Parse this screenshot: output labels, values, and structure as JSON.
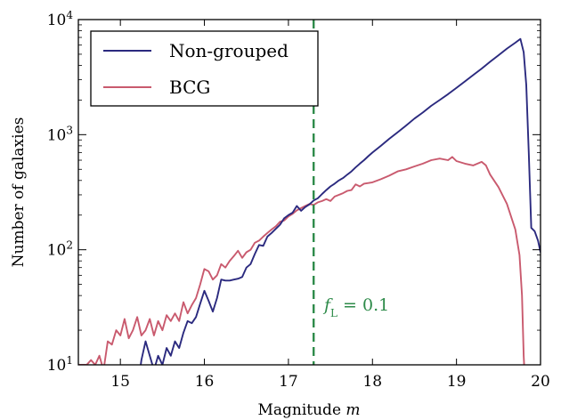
{
  "chart_data": {
    "type": "line",
    "xlabel": "Magnitude m",
    "ylabel": "Number of galaxies",
    "xlim": [
      14.5,
      20.0
    ],
    "ylim": [
      10,
      10000
    ],
    "yscale": "log",
    "grid": false,
    "legend_position": "top-left",
    "x_ticks": [
      "15",
      "16",
      "17",
      "18",
      "19",
      "20"
    ],
    "y_ticks": [
      {
        "value": 10,
        "base": "10",
        "exp": "1"
      },
      {
        "value": 100,
        "base": "10",
        "exp": "2"
      },
      {
        "value": 1000,
        "base": "10",
        "exp": "3"
      },
      {
        "value": 10000,
        "base": "10",
        "exp": "4"
      }
    ],
    "series": [
      {
        "name": "Non-grouped",
        "color": "#2b2a7f",
        "points": [
          [
            15.1,
            10
          ],
          [
            15.15,
            7
          ],
          [
            15.2,
            6
          ],
          [
            15.25,
            11
          ],
          [
            15.3,
            16
          ],
          [
            15.35,
            12
          ],
          [
            15.4,
            9
          ],
          [
            15.45,
            12
          ],
          [
            15.5,
            10
          ],
          [
            15.55,
            14
          ],
          [
            15.6,
            12
          ],
          [
            15.65,
            16
          ],
          [
            15.7,
            14
          ],
          [
            15.75,
            19
          ],
          [
            15.8,
            24
          ],
          [
            15.85,
            23
          ],
          [
            15.9,
            26
          ],
          [
            15.95,
            34
          ],
          [
            16.0,
            44
          ],
          [
            16.05,
            36
          ],
          [
            16.1,
            29
          ],
          [
            16.15,
            38
          ],
          [
            16.2,
            55
          ],
          [
            16.25,
            54
          ],
          [
            16.3,
            54
          ],
          [
            16.35,
            55
          ],
          [
            16.4,
            56
          ],
          [
            16.45,
            58
          ],
          [
            16.5,
            70
          ],
          [
            16.55,
            75
          ],
          [
            16.6,
            92
          ],
          [
            16.65,
            110
          ],
          [
            16.7,
            108
          ],
          [
            16.75,
            130
          ],
          [
            16.8,
            140
          ],
          [
            16.85,
            152
          ],
          [
            16.9,
            165
          ],
          [
            16.95,
            188
          ],
          [
            17.0,
            200
          ],
          [
            17.05,
            210
          ],
          [
            17.1,
            240
          ],
          [
            17.15,
            218
          ],
          [
            17.2,
            235
          ],
          [
            17.25,
            248
          ],
          [
            17.3,
            268
          ],
          [
            17.35,
            280
          ],
          [
            17.4,
            305
          ],
          [
            17.45,
            330
          ],
          [
            17.5,
            355
          ],
          [
            17.55,
            375
          ],
          [
            17.6,
            400
          ],
          [
            17.65,
            420
          ],
          [
            17.7,
            450
          ],
          [
            17.75,
            480
          ],
          [
            17.8,
            520
          ],
          [
            17.85,
            560
          ],
          [
            17.9,
            600
          ],
          [
            17.95,
            650
          ],
          [
            18.0,
            700
          ],
          [
            18.1,
            800
          ],
          [
            18.2,
            920
          ],
          [
            18.3,
            1050
          ],
          [
            18.4,
            1200
          ],
          [
            18.5,
            1380
          ],
          [
            18.6,
            1560
          ],
          [
            18.7,
            1780
          ],
          [
            18.8,
            2000
          ],
          [
            18.9,
            2250
          ],
          [
            19.0,
            2550
          ],
          [
            19.1,
            2900
          ],
          [
            19.2,
            3300
          ],
          [
            19.3,
            3750
          ],
          [
            19.4,
            4300
          ],
          [
            19.5,
            4900
          ],
          [
            19.6,
            5600
          ],
          [
            19.7,
            6300
          ],
          [
            19.76,
            6800
          ],
          [
            19.8,
            5200
          ],
          [
            19.83,
            2700
          ],
          [
            19.86,
            700
          ],
          [
            19.89,
            155
          ],
          [
            19.93,
            145
          ],
          [
            19.97,
            120
          ],
          [
            20.0,
            95
          ]
        ]
      },
      {
        "name": "BCG",
        "color": "#c95a6e",
        "points": [
          [
            14.5,
            10
          ],
          [
            14.55,
            10
          ],
          [
            14.6,
            10
          ],
          [
            14.65,
            11
          ],
          [
            14.7,
            10
          ],
          [
            14.75,
            12
          ],
          [
            14.8,
            9
          ],
          [
            14.85,
            16
          ],
          [
            14.9,
            15
          ],
          [
            14.95,
            20
          ],
          [
            15.0,
            18
          ],
          [
            15.05,
            25
          ],
          [
            15.1,
            17
          ],
          [
            15.15,
            20
          ],
          [
            15.2,
            26
          ],
          [
            15.25,
            18
          ],
          [
            15.3,
            20
          ],
          [
            15.35,
            25
          ],
          [
            15.4,
            18
          ],
          [
            15.45,
            24
          ],
          [
            15.5,
            20
          ],
          [
            15.55,
            27
          ],
          [
            15.6,
            24
          ],
          [
            15.65,
            28
          ],
          [
            15.7,
            24
          ],
          [
            15.75,
            35
          ],
          [
            15.8,
            28
          ],
          [
            15.85,
            33
          ],
          [
            15.9,
            38
          ],
          [
            15.95,
            50
          ],
          [
            16.0,
            68
          ],
          [
            16.05,
            65
          ],
          [
            16.1,
            55
          ],
          [
            16.15,
            60
          ],
          [
            16.2,
            75
          ],
          [
            16.25,
            70
          ],
          [
            16.3,
            80
          ],
          [
            16.35,
            88
          ],
          [
            16.4,
            98
          ],
          [
            16.45,
            85
          ],
          [
            16.5,
            95
          ],
          [
            16.55,
            100
          ],
          [
            16.6,
            115
          ],
          [
            16.65,
            120
          ],
          [
            16.7,
            130
          ],
          [
            16.75,
            140
          ],
          [
            16.8,
            150
          ],
          [
            16.85,
            160
          ],
          [
            16.9,
            175
          ],
          [
            16.95,
            180
          ],
          [
            17.0,
            195
          ],
          [
            17.05,
            205
          ],
          [
            17.1,
            220
          ],
          [
            17.15,
            230
          ],
          [
            17.2,
            240
          ],
          [
            17.25,
            250
          ],
          [
            17.3,
            245
          ],
          [
            17.35,
            258
          ],
          [
            17.4,
            265
          ],
          [
            17.45,
            275
          ],
          [
            17.5,
            265
          ],
          [
            17.55,
            290
          ],
          [
            17.6,
            300
          ],
          [
            17.65,
            310
          ],
          [
            17.7,
            325
          ],
          [
            17.75,
            330
          ],
          [
            17.8,
            370
          ],
          [
            17.85,
            355
          ],
          [
            17.9,
            375
          ],
          [
            17.95,
            380
          ],
          [
            18.0,
            385
          ],
          [
            18.1,
            410
          ],
          [
            18.2,
            440
          ],
          [
            18.3,
            480
          ],
          [
            18.4,
            500
          ],
          [
            18.5,
            530
          ],
          [
            18.6,
            560
          ],
          [
            18.7,
            600
          ],
          [
            18.8,
            620
          ],
          [
            18.9,
            600
          ],
          [
            18.95,
            640
          ],
          [
            19.0,
            590
          ],
          [
            19.1,
            560
          ],
          [
            19.2,
            540
          ],
          [
            19.3,
            580
          ],
          [
            19.35,
            540
          ],
          [
            19.4,
            450
          ],
          [
            19.5,
            350
          ],
          [
            19.6,
            250
          ],
          [
            19.7,
            150
          ],
          [
            19.75,
            90
          ],
          [
            19.78,
            40
          ],
          [
            19.8,
            12
          ],
          [
            19.82,
            6
          ]
        ]
      }
    ],
    "annotations": [
      {
        "text_main": "f",
        "text_sub": "L",
        "text_rest": " = 0.1",
        "x": 17.3,
        "color": "#2e8b4a"
      }
    ]
  }
}
